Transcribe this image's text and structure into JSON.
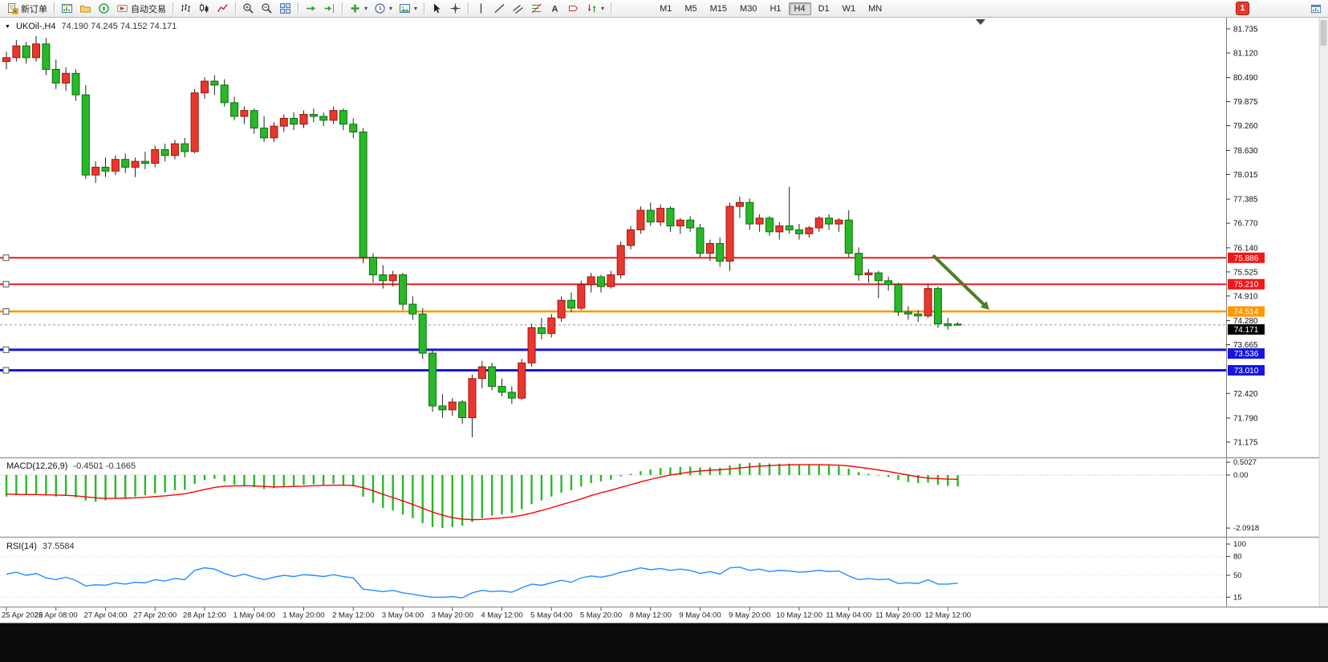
{
  "toolbar": {
    "new_order_label": "新订单",
    "autotrading_label": "自动交易",
    "timeframes": [
      "M1",
      "M5",
      "M15",
      "M30",
      "H1",
      "H4",
      "D1",
      "W1",
      "MN"
    ],
    "active_timeframe": "H4",
    "notification_count": "1"
  },
  "chart_header": {
    "symbol_period": "UKOil-,H4",
    "ohlc_text": "74.190 74.245 74.152 74.171"
  },
  "macd_header": {
    "label": "MACD(12,26,9)",
    "values": "-0.4501 -0.1665"
  },
  "rsi_header": {
    "label": "RSI(14)",
    "values": "37.5584"
  },
  "chart_data": {
    "type": "candlestick",
    "symbol": "UKOil-",
    "period": "H4",
    "current": {
      "open": 74.19,
      "high": 74.245,
      "low": 74.152,
      "close": 74.171
    },
    "price_axis_ticks": [
      81.735,
      81.12,
      80.49,
      79.875,
      79.26,
      78.63,
      78.015,
      77.385,
      76.77,
      76.14,
      75.525,
      74.91,
      74.28,
      73.665,
      72.42,
      71.79,
      71.175
    ],
    "time_labels": [
      "25 Apr 2023",
      "26 Apr 08:00",
      "27 Apr 04:00",
      "27 Apr 20:00",
      "28 Apr 12:00",
      "1 May 04:00",
      "1 May 20:00",
      "2 May 12:00",
      "3 May 04:00",
      "3 May 20:00",
      "4 May 12:00",
      "5 May 04:00",
      "5 May 20:00",
      "8 May 12:00",
      "9 May 04:00",
      "9 May 20:00",
      "10 May 12:00",
      "11 May 04:00",
      "11 May 20:00",
      "12 May 12:00"
    ],
    "horizontal_lines": [
      {
        "price": 75.886,
        "label": "75.886",
        "color": "#f01818",
        "width": 2
      },
      {
        "price": 75.21,
        "label": "75.210",
        "color": "#f01818",
        "width": 2
      },
      {
        "price": 74.514,
        "label": "74.514",
        "color": "#ff9800",
        "width": 2.5
      },
      {
        "price": 73.536,
        "label": "73.536",
        "color": "#1616dd",
        "width": 3
      },
      {
        "price": 73.01,
        "label": "73.010",
        "color": "#1616dd",
        "width": 3
      }
    ],
    "current_price_badge": {
      "price": 74.171,
      "label": "74.171",
      "color": "#000000"
    },
    "candles": [
      [
        80.9,
        81.15,
        80.7,
        81.0
      ],
      [
        81.0,
        81.45,
        80.9,
        81.3
      ],
      [
        81.3,
        81.4,
        80.85,
        81.0
      ],
      [
        81.0,
        81.55,
        80.9,
        81.35
      ],
      [
        81.35,
        81.5,
        80.55,
        80.7
      ],
      [
        80.7,
        80.95,
        80.2,
        80.35
      ],
      [
        80.35,
        80.75,
        80.15,
        80.6
      ],
      [
        80.6,
        80.7,
        79.9,
        80.05
      ],
      [
        80.05,
        80.3,
        77.9,
        78.0
      ],
      [
        78.0,
        78.35,
        77.8,
        78.2
      ],
      [
        78.2,
        78.45,
        77.95,
        78.1
      ],
      [
        78.1,
        78.5,
        78.0,
        78.4
      ],
      [
        78.4,
        78.55,
        78.05,
        78.2
      ],
      [
        78.2,
        78.45,
        77.95,
        78.35
      ],
      [
        78.35,
        78.6,
        78.15,
        78.3
      ],
      [
        78.3,
        78.75,
        78.2,
        78.65
      ],
      [
        78.65,
        78.8,
        78.35,
        78.5
      ],
      [
        78.5,
        78.9,
        78.4,
        78.8
      ],
      [
        78.8,
        78.95,
        78.45,
        78.6
      ],
      [
        78.6,
        80.2,
        78.55,
        80.1
      ],
      [
        80.1,
        80.5,
        79.95,
        80.4
      ],
      [
        80.4,
        80.55,
        80.05,
        80.3
      ],
      [
        80.3,
        80.45,
        79.75,
        79.85
      ],
      [
        79.85,
        80.0,
        79.4,
        79.5
      ],
      [
        79.5,
        79.75,
        79.3,
        79.65
      ],
      [
        79.65,
        79.7,
        79.05,
        79.2
      ],
      [
        79.2,
        79.5,
        78.85,
        78.95
      ],
      [
        78.95,
        79.35,
        78.85,
        79.25
      ],
      [
        79.25,
        79.55,
        79.1,
        79.45
      ],
      [
        79.45,
        79.6,
        79.15,
        79.3
      ],
      [
        79.3,
        79.65,
        79.2,
        79.55
      ],
      [
        79.55,
        79.7,
        79.35,
        79.5
      ],
      [
        79.5,
        79.6,
        79.25,
        79.4
      ],
      [
        79.4,
        79.75,
        79.3,
        79.65
      ],
      [
        79.65,
        79.7,
        79.15,
        79.3
      ],
      [
        79.3,
        79.45,
        78.95,
        79.1
      ],
      [
        79.1,
        79.2,
        75.75,
        75.9
      ],
      [
        75.9,
        76.0,
        75.25,
        75.45
      ],
      [
        75.45,
        75.7,
        75.1,
        75.3
      ],
      [
        75.3,
        75.55,
        75.15,
        75.45
      ],
      [
        75.45,
        75.5,
        74.55,
        74.7
      ],
      [
        74.7,
        74.9,
        74.3,
        74.45
      ],
      [
        74.45,
        74.6,
        73.3,
        73.45
      ],
      [
        73.45,
        73.55,
        71.95,
        72.1
      ],
      [
        72.1,
        72.4,
        71.8,
        72.0
      ],
      [
        72.0,
        72.3,
        71.85,
        72.2
      ],
      [
        72.2,
        72.25,
        71.65,
        71.8
      ],
      [
        71.8,
        72.9,
        71.3,
        72.8
      ],
      [
        72.8,
        73.25,
        72.55,
        73.1
      ],
      [
        73.1,
        73.2,
        72.5,
        72.6
      ],
      [
        72.6,
        72.8,
        72.35,
        72.45
      ],
      [
        72.45,
        72.6,
        72.15,
        72.3
      ],
      [
        72.3,
        73.3,
        72.25,
        73.2
      ],
      [
        73.2,
        74.2,
        73.1,
        74.1
      ],
      [
        74.1,
        74.35,
        73.8,
        73.95
      ],
      [
        73.95,
        74.45,
        73.85,
        74.35
      ],
      [
        74.35,
        74.9,
        74.25,
        74.8
      ],
      [
        74.8,
        75.0,
        74.5,
        74.6
      ],
      [
        74.6,
        75.3,
        74.55,
        75.2
      ],
      [
        75.2,
        75.5,
        75.0,
        75.4
      ],
      [
        75.4,
        75.45,
        75.0,
        75.15
      ],
      [
        75.15,
        75.55,
        75.1,
        75.45
      ],
      [
        75.45,
        76.3,
        75.35,
        76.2
      ],
      [
        76.2,
        76.7,
        76.1,
        76.6
      ],
      [
        76.6,
        77.2,
        76.5,
        77.1
      ],
      [
        77.1,
        77.3,
        76.7,
        76.8
      ],
      [
        76.8,
        77.25,
        76.7,
        77.15
      ],
      [
        77.15,
        77.2,
        76.55,
        76.7
      ],
      [
        76.7,
        76.9,
        76.5,
        76.85
      ],
      [
        76.85,
        76.95,
        76.55,
        76.65
      ],
      [
        76.65,
        76.75,
        75.9,
        76.0
      ],
      [
        76.0,
        76.35,
        75.8,
        76.25
      ],
      [
        76.25,
        76.4,
        75.65,
        75.8
      ],
      [
        75.8,
        77.3,
        75.55,
        77.2
      ],
      [
        77.2,
        77.45,
        76.9,
        77.3
      ],
      [
        77.3,
        77.4,
        76.6,
        76.75
      ],
      [
        76.75,
        77.0,
        76.55,
        76.9
      ],
      [
        76.9,
        76.95,
        76.45,
        76.55
      ],
      [
        76.55,
        76.8,
        76.35,
        76.7
      ],
      [
        76.7,
        77.7,
        76.5,
        76.6
      ],
      [
        76.6,
        76.75,
        76.35,
        76.5
      ],
      [
        76.5,
        76.7,
        76.4,
        76.65
      ],
      [
        76.65,
        76.95,
        76.55,
        76.9
      ],
      [
        76.9,
        77.0,
        76.6,
        76.75
      ],
      [
        76.75,
        76.9,
        76.55,
        76.85
      ],
      [
        76.85,
        77.1,
        75.9,
        76.0
      ],
      [
        76.0,
        76.15,
        75.3,
        75.45
      ],
      [
        75.45,
        75.6,
        75.25,
        75.5
      ],
      [
        75.5,
        75.55,
        74.85,
        75.3
      ],
      [
        75.3,
        75.4,
        75.05,
        75.2
      ],
      [
        75.2,
        75.25,
        74.4,
        74.5
      ],
      [
        74.5,
        74.65,
        74.3,
        74.45
      ],
      [
        74.45,
        74.55,
        74.25,
        74.4
      ],
      [
        74.4,
        75.2,
        74.35,
        75.1
      ],
      [
        75.1,
        75.15,
        74.1,
        74.2
      ],
      [
        74.2,
        74.35,
        74.05,
        74.15
      ],
      [
        74.19,
        74.245,
        74.152,
        74.171
      ]
    ],
    "macd": {
      "axis_ticks": [
        {
          "label": "0.5027",
          "value": 0.5027
        },
        {
          "label": "0.00",
          "value": 0
        },
        {
          "label": "-2.0918",
          "value": -2.0918
        }
      ],
      "histogram": [
        -0.85,
        -0.8,
        -0.78,
        -0.75,
        -0.8,
        -0.85,
        -0.82,
        -0.88,
        -1.0,
        -1.05,
        -1.0,
        -0.92,
        -0.88,
        -0.85,
        -0.8,
        -0.72,
        -0.68,
        -0.6,
        -0.58,
        -0.35,
        -0.2,
        -0.15,
        -0.25,
        -0.38,
        -0.4,
        -0.48,
        -0.55,
        -0.52,
        -0.45,
        -0.42,
        -0.38,
        -0.36,
        -0.38,
        -0.35,
        -0.4,
        -0.45,
        -0.85,
        -1.1,
        -1.3,
        -1.4,
        -1.55,
        -1.7,
        -1.9,
        -2.05,
        -2.09,
        -2.05,
        -2.0,
        -1.85,
        -1.7,
        -1.6,
        -1.55,
        -1.5,
        -1.35,
        -1.15,
        -1.0,
        -0.85,
        -0.7,
        -0.6,
        -0.45,
        -0.32,
        -0.25,
        -0.18,
        -0.05,
        0.05,
        0.15,
        0.22,
        0.28,
        0.3,
        0.32,
        0.33,
        0.3,
        0.3,
        0.28,
        0.38,
        0.45,
        0.48,
        0.48,
        0.46,
        0.45,
        0.45,
        0.42,
        0.4,
        0.4,
        0.38,
        0.36,
        0.25,
        0.12,
        0.05,
        -0.02,
        -0.08,
        -0.2,
        -0.28,
        -0.32,
        -0.3,
        -0.38,
        -0.43,
        -0.4501
      ],
      "signal": [
        -0.75,
        -0.76,
        -0.77,
        -0.77,
        -0.78,
        -0.79,
        -0.8,
        -0.82,
        -0.86,
        -0.9,
        -0.92,
        -0.92,
        -0.91,
        -0.9,
        -0.88,
        -0.85,
        -0.82,
        -0.78,
        -0.74,
        -0.66,
        -0.57,
        -0.49,
        -0.44,
        -0.43,
        -0.42,
        -0.43,
        -0.45,
        -0.47,
        -0.46,
        -0.45,
        -0.44,
        -0.42,
        -0.41,
        -0.4,
        -0.4,
        -0.41,
        -0.5,
        -0.62,
        -0.76,
        -0.89,
        -1.02,
        -1.16,
        -1.31,
        -1.46,
        -1.58,
        -1.68,
        -1.74,
        -1.76,
        -1.75,
        -1.72,
        -1.69,
        -1.65,
        -1.59,
        -1.5,
        -1.4,
        -1.29,
        -1.17,
        -1.06,
        -0.94,
        -0.81,
        -0.7,
        -0.6,
        -0.49,
        -0.38,
        -0.27,
        -0.17,
        -0.08,
        0.0,
        0.06,
        0.12,
        0.16,
        0.19,
        0.21,
        0.24,
        0.28,
        0.32,
        0.35,
        0.37,
        0.39,
        0.4,
        0.41,
        0.41,
        0.41,
        0.4,
        0.39,
        0.36,
        0.31,
        0.26,
        0.2,
        0.14,
        0.07,
        0.0,
        -0.07,
        -0.12,
        -0.14,
        -0.16,
        -0.1665
      ]
    },
    "rsi": {
      "axis_ticks": [
        {
          "label": "100",
          "value": 100
        },
        {
          "label": "80",
          "value": 80
        },
        {
          "label": "50",
          "value": 50
        },
        {
          "label": "15",
          "value": 15
        }
      ],
      "values": [
        52,
        55,
        50,
        53,
        46,
        43,
        47,
        42,
        33,
        35,
        34,
        38,
        36,
        39,
        38,
        43,
        41,
        45,
        43,
        58,
        62,
        60,
        53,
        48,
        52,
        47,
        43,
        47,
        50,
        48,
        51,
        50,
        48,
        51,
        48,
        46,
        28,
        26,
        24,
        26,
        22,
        20,
        17,
        15,
        15,
        16,
        14,
        22,
        26,
        24,
        25,
        23,
        30,
        36,
        34,
        38,
        42,
        39,
        46,
        49,
        47,
        50,
        55,
        58,
        62,
        59,
        61,
        58,
        60,
        58,
        53,
        56,
        52,
        62,
        63,
        58,
        60,
        56,
        58,
        57,
        55,
        56,
        58,
        56,
        57,
        49,
        43,
        45,
        43,
        44,
        37,
        38,
        37,
        43,
        36,
        36,
        37.5584
      ]
    },
    "arrow_annotation": {
      "start": {
        "bar": 93.5,
        "price": 75.95
      },
      "end": {
        "bar": 98.6,
        "price": 74.7
      },
      "color": "#4e7e22"
    },
    "colors": {
      "up": "#e8382d",
      "down": "#28b828",
      "wick": "#222222",
      "macd_hist": "#28b828",
      "macd_signal": "#ff0000",
      "rsi": "#1e90ff"
    }
  }
}
